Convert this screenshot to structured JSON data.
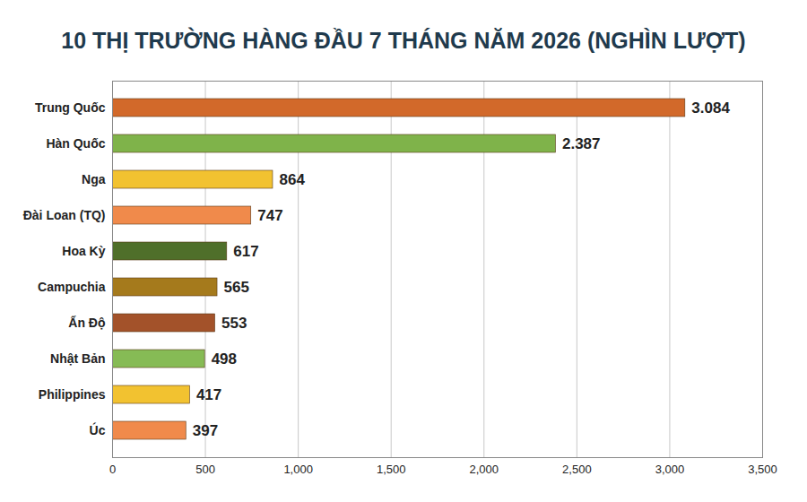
{
  "chart_data": {
    "type": "bar",
    "orientation": "horizontal",
    "title": "10 THỊ TRƯỜNG HÀNG ĐẦU 7 THÁNG NĂM 2026 (NGHÌN LƯỢT)",
    "categories": [
      "Trung Quốc",
      "Hàn Quốc",
      "Nga",
      "Đài Loan (TQ)",
      "Hoa Kỳ",
      "Campuchia",
      "Ấn Độ",
      "Nhật Bản",
      "Philippines",
      "Úc"
    ],
    "values": [
      3084,
      2387,
      864,
      747,
      617,
      565,
      553,
      498,
      417,
      397
    ],
    "value_labels": [
      "3.084",
      "2.387",
      "864",
      "747",
      "617",
      "565",
      "553",
      "498",
      "417",
      "397"
    ],
    "colors": [
      "#d2692a",
      "#7fb34a",
      "#f2c230",
      "#f08a4b",
      "#4f6f2a",
      "#a57a1c",
      "#a3522a",
      "#86bb55",
      "#f2c230",
      "#f08a4b"
    ],
    "xlim": [
      0,
      3500
    ],
    "xticks": [
      0,
      500,
      1000,
      1500,
      2000,
      2500,
      3000,
      3500
    ],
    "grid": true,
    "data_labels": true
  }
}
